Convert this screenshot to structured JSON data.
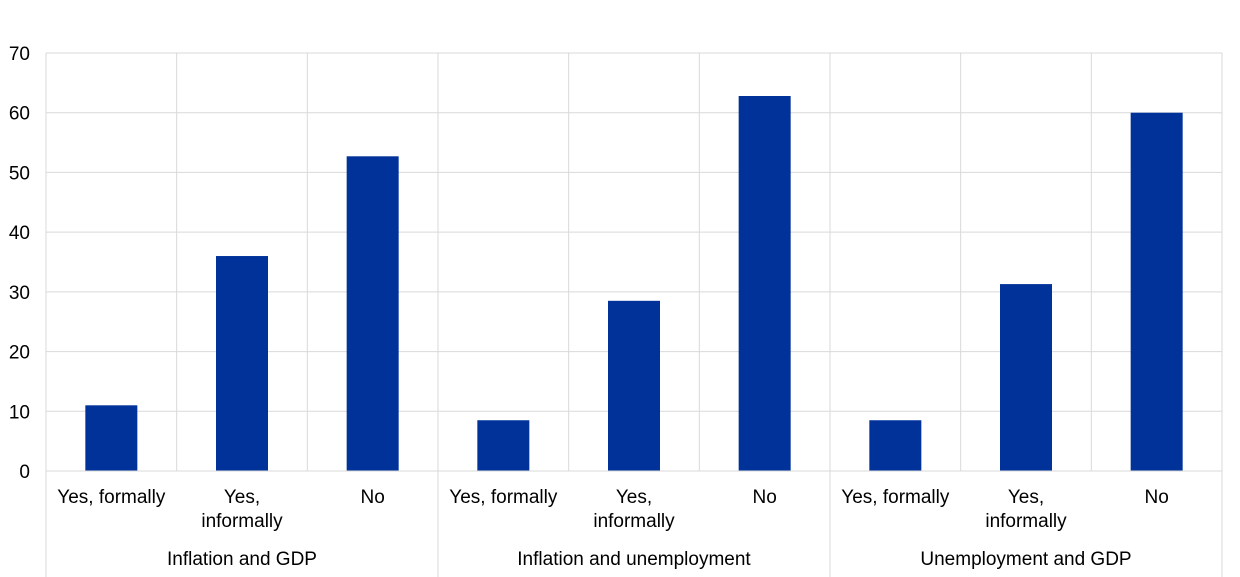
{
  "chart_data": {
    "type": "bar",
    "groups": [
      {
        "name": "Inflation and GDP",
        "categories": [
          "Yes, formally",
          "Yes,\ninformally",
          "No"
        ],
        "values": [
          11,
          36,
          52.7
        ]
      },
      {
        "name": "Inflation and unemployment",
        "categories": [
          "Yes, formally",
          "Yes,\ninformally",
          "No"
        ],
        "values": [
          8.5,
          28.5,
          62.8
        ]
      },
      {
        "name": "Unemployment and GDP",
        "categories": [
          "Yes, formally",
          "Yes,\ninformally",
          "No"
        ],
        "values": [
          8.5,
          31.3,
          60
        ]
      }
    ],
    "ylim": [
      0,
      70
    ],
    "yticks": [
      0,
      10,
      20,
      30,
      40,
      50,
      60,
      70
    ],
    "grid": true,
    "legend": "none",
    "bar_color": "#003299",
    "grid_color": "#d9d9d9"
  }
}
